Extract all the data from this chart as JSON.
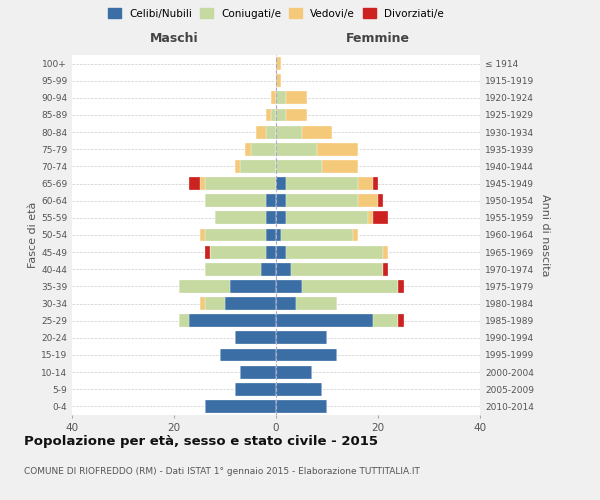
{
  "age_groups": [
    "0-4",
    "5-9",
    "10-14",
    "15-19",
    "20-24",
    "25-29",
    "30-34",
    "35-39",
    "40-44",
    "45-49",
    "50-54",
    "55-59",
    "60-64",
    "65-69",
    "70-74",
    "75-79",
    "80-84",
    "85-89",
    "90-94",
    "95-99",
    "100+"
  ],
  "birth_years": [
    "2010-2014",
    "2005-2009",
    "2000-2004",
    "1995-1999",
    "1990-1994",
    "1985-1989",
    "1980-1984",
    "1975-1979",
    "1970-1974",
    "1965-1969",
    "1960-1964",
    "1955-1959",
    "1950-1954",
    "1945-1949",
    "1940-1944",
    "1935-1939",
    "1930-1934",
    "1925-1929",
    "1920-1924",
    "1915-1919",
    "≤ 1914"
  ],
  "males": {
    "celibi": [
      14,
      8,
      7,
      11,
      8,
      17,
      10,
      9,
      3,
      2,
      2,
      2,
      2,
      0,
      0,
      0,
      0,
      0,
      0,
      0,
      0
    ],
    "coniugati": [
      0,
      0,
      0,
      0,
      0,
      2,
      4,
      10,
      11,
      11,
      12,
      10,
      12,
      14,
      7,
      5,
      2,
      1,
      0,
      0,
      0
    ],
    "vedovi": [
      0,
      0,
      0,
      0,
      0,
      0,
      1,
      0,
      0,
      0,
      1,
      0,
      0,
      1,
      1,
      1,
      2,
      1,
      1,
      0,
      0
    ],
    "divorziati": [
      0,
      0,
      0,
      0,
      0,
      0,
      0,
      0,
      0,
      1,
      0,
      0,
      0,
      2,
      0,
      0,
      0,
      0,
      0,
      0,
      0
    ]
  },
  "females": {
    "nubili": [
      10,
      9,
      7,
      12,
      10,
      19,
      4,
      5,
      3,
      2,
      1,
      2,
      2,
      2,
      0,
      0,
      0,
      0,
      0,
      0,
      0
    ],
    "coniugate": [
      0,
      0,
      0,
      0,
      0,
      5,
      8,
      19,
      18,
      19,
      14,
      16,
      14,
      14,
      9,
      8,
      5,
      2,
      2,
      0,
      0
    ],
    "vedove": [
      0,
      0,
      0,
      0,
      0,
      0,
      0,
      0,
      0,
      1,
      1,
      1,
      4,
      3,
      7,
      8,
      6,
      4,
      4,
      1,
      1
    ],
    "divorziate": [
      0,
      0,
      0,
      0,
      0,
      1,
      0,
      1,
      1,
      0,
      0,
      3,
      1,
      1,
      0,
      0,
      0,
      0,
      0,
      0,
      0
    ]
  },
  "colors": {
    "celibi": "#3b6ea5",
    "coniugati": "#c5d9a0",
    "vedovi": "#f5c97a",
    "divorziati": "#cc2222"
  },
  "xlim": 40,
  "title": "Popolazione per età, sesso e stato civile - 2015",
  "subtitle": "COMUNE DI RIOFREDDO (RM) - Dati ISTAT 1° gennaio 2015 - Elaborazione TUTTITALIA.IT",
  "ylabel_left": "Fasce di età",
  "ylabel_right": "Anni di nascita",
  "xlabel_males": "Maschi",
  "xlabel_females": "Femmine",
  "legend_labels": [
    "Celibi/Nubili",
    "Coniugati/e",
    "Vedovi/e",
    "Divorziati/e"
  ],
  "background_color": "#f0f0f0",
  "plot_background": "#ffffff"
}
